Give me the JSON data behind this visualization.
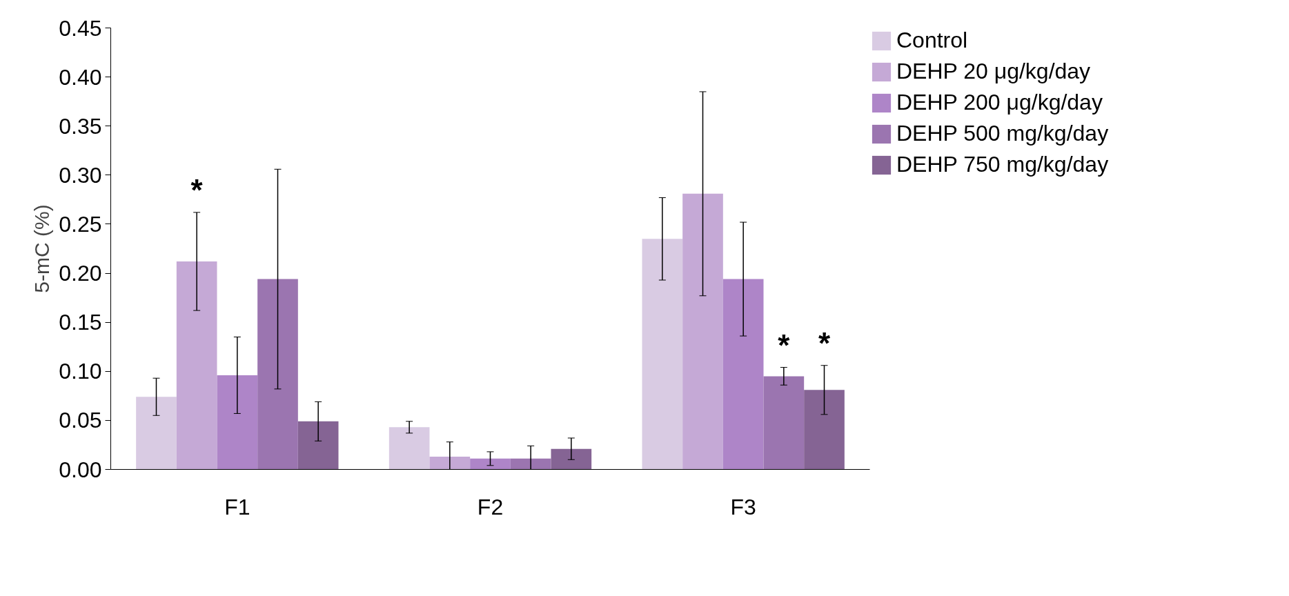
{
  "chart_data": {
    "type": "bar",
    "ylabel": "5-mC (%)",
    "categories": [
      "F1",
      "F2",
      "F3"
    ],
    "series": [
      {
        "name": "Control",
        "color": "#d9cbe3",
        "values": [
          0.074,
          0.043,
          0.235
        ],
        "errors": [
          0.019,
          0.006,
          0.042
        ]
      },
      {
        "name": "DEHP 20 μg/kg/day",
        "color": "#c5a9d6",
        "values": [
          0.212,
          0.013,
          0.281
        ],
        "errors": [
          0.05,
          0.015,
          0.104
        ],
        "value_labels": [
          "*",
          null,
          null
        ]
      },
      {
        "name": "DEHP 200 μg/kg/day",
        "color": "#ae85c8",
        "values": [
          0.096,
          0.011,
          0.194
        ],
        "errors": [
          0.039,
          0.007,
          0.058
        ]
      },
      {
        "name": "DEHP 500 mg/kg/day",
        "color": "#9b75b0",
        "values": [
          0.194,
          0.011,
          0.095
        ],
        "errors": [
          0.112,
          0.013,
          0.009
        ],
        "value_labels": [
          null,
          null,
          "*"
        ]
      },
      {
        "name": "DEHP 750 mg/kg/day",
        "color": "#856494",
        "values": [
          0.049,
          0.021,
          0.081
        ],
        "errors": [
          0.02,
          0.011,
          0.025
        ],
        "value_labels": [
          null,
          null,
          "*"
        ]
      }
    ],
    "ylim": [
      0,
      0.45
    ],
    "yticks": [
      {
        "value": 0,
        "label": "0.00"
      },
      {
        "value": 0.05,
        "label": "0.05"
      },
      {
        "value": 0.1,
        "label": "0.10"
      },
      {
        "value": 0.15,
        "label": "0.15"
      },
      {
        "value": 0.2,
        "label": "0.20"
      },
      {
        "value": 0.25,
        "label": "0.25"
      },
      {
        "value": 0.3,
        "label": "0.30"
      },
      {
        "value": 0.35,
        "label": "0.35"
      },
      {
        "value": 0.4,
        "label": "0.40"
      },
      {
        "value": 0.45,
        "label": "0.45"
      }
    ],
    "grid": false,
    "legend": "top right"
  }
}
